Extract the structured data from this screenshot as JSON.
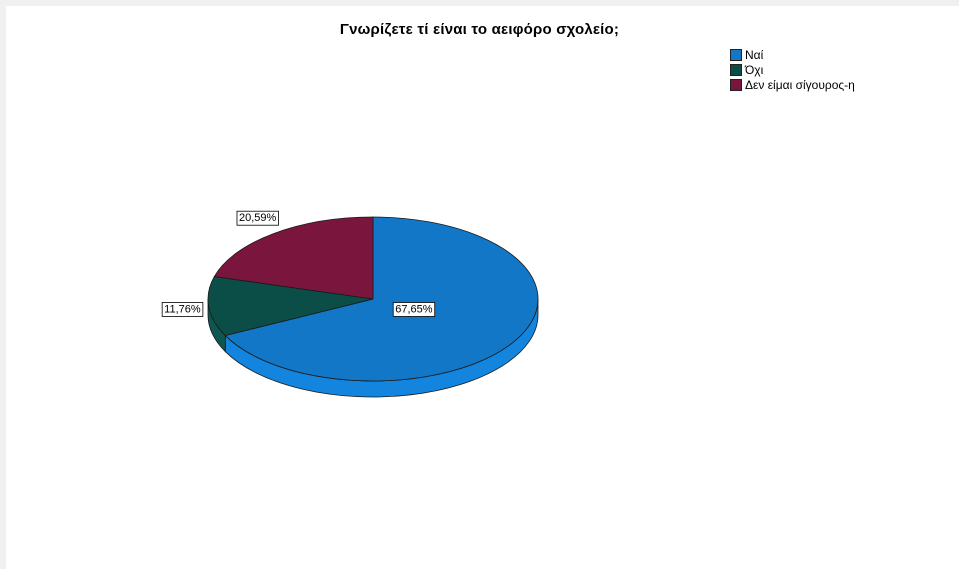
{
  "chart_data": {
    "type": "pie",
    "title": "Γνωρίζετε τί είναι το αειφόρο σχολείο;",
    "legend_position": "top-right",
    "categories": [
      "Ναί",
      "Όχι",
      "Δεν είμαι σίγουρος-η"
    ],
    "values": [
      67.65,
      11.76,
      20.59
    ],
    "labels": [
      "67,65%",
      "11,76%",
      "20,59%"
    ],
    "colors": [
      "#1177c6",
      "#0b4e48",
      "#7a153e"
    ],
    "style": "3d"
  }
}
